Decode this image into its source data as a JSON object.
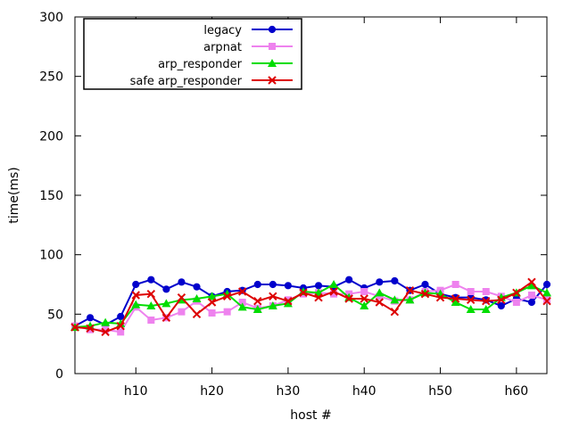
{
  "chart_data": {
    "type": "line",
    "xlabel": "host #",
    "ylabel": "time(ms)",
    "xlim": [
      2,
      64
    ],
    "ylim": [
      0,
      300
    ],
    "yticks": [
      0,
      50,
      100,
      150,
      200,
      250,
      300
    ],
    "xticks": [
      {
        "value": 10,
        "label": "h10"
      },
      {
        "value": 20,
        "label": "h20"
      },
      {
        "value": 30,
        "label": "h30"
      },
      {
        "value": 40,
        "label": "h40"
      },
      {
        "value": 50,
        "label": "h50"
      },
      {
        "value": 60,
        "label": "h60"
      }
    ],
    "legend_position": "top-left",
    "grid": false,
    "x": [
      2,
      4,
      6,
      8,
      10,
      12,
      14,
      16,
      18,
      20,
      22,
      24,
      26,
      28,
      30,
      32,
      34,
      36,
      38,
      40,
      42,
      44,
      46,
      48,
      50,
      52,
      54,
      56,
      58,
      60,
      62,
      64
    ],
    "series": [
      {
        "name": "legacy",
        "color": "#0000cc",
        "marker": "circle",
        "values": [
          40,
          47,
          41,
          48,
          75,
          79,
          71,
          77,
          73,
          65,
          69,
          70,
          75,
          75,
          74,
          72,
          74,
          73,
          79,
          72,
          77,
          78,
          70,
          75,
          67,
          64,
          64,
          62,
          57,
          63,
          60,
          75
        ]
      },
      {
        "name": "arpnat",
        "color": "#ee82ee",
        "marker": "square",
        "values": [
          40,
          37,
          37,
          35,
          56,
          45,
          47,
          52,
          61,
          51,
          52,
          60,
          55,
          57,
          62,
          67,
          68,
          67,
          67,
          69,
          65,
          61,
          62,
          69,
          70,
          75,
          69,
          69,
          65,
          60,
          66,
          62
        ]
      },
      {
        "name": "arp_responder",
        "color": "#00dd00",
        "marker": "triangle",
        "values": [
          39,
          40,
          43,
          42,
          58,
          57,
          59,
          62,
          63,
          65,
          67,
          56,
          54,
          57,
          59,
          69,
          68,
          75,
          64,
          57,
          68,
          62,
          62,
          68,
          67,
          60,
          54,
          54,
          64,
          68,
          74,
          68
        ]
      },
      {
        "name": "safe arp_responder",
        "color": "#dd0000",
        "marker": "cross",
        "values": [
          39,
          38,
          35,
          40,
          66,
          67,
          47,
          64,
          50,
          60,
          65,
          69,
          61,
          65,
          61,
          68,
          64,
          69,
          63,
          63,
          60,
          52,
          70,
          67,
          64,
          63,
          62,
          61,
          62,
          68,
          77,
          61
        ]
      }
    ]
  }
}
